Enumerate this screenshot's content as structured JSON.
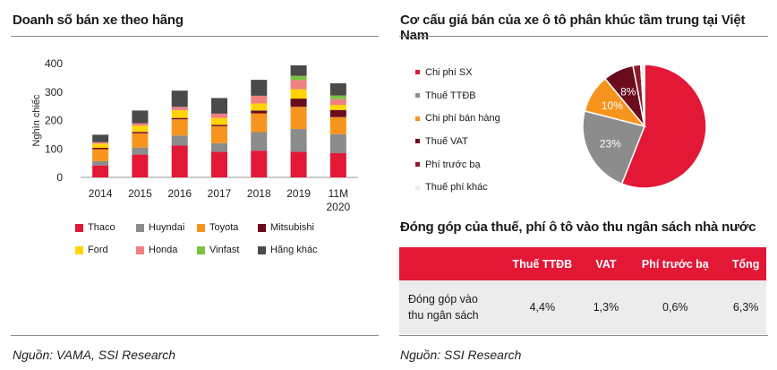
{
  "left": {
    "title": "Doanh số bán xe theo hãng",
    "source": "Nguồn: VAMA, SSI Research"
  },
  "right": {
    "pie_title": "Cơ cấu giá bán của xe ô tô phân khúc tầm trung tại Việt Nam",
    "table_title": "Đóng góp của thuế, phí ô tô vào thu ngân sách nhà nước",
    "source": "Nguồn: SSI Research"
  },
  "table": {
    "headers": [
      "",
      "Thuế TTĐB",
      "VAT",
      "Phí trước bạ",
      "Tổng"
    ],
    "row_label_line1": "Đóng góp vào",
    "row_label_line2": "thu ngân sách",
    "values": [
      "4,4%",
      "1,3%",
      "0,6%",
      "6,3%"
    ]
  },
  "colors": {
    "red": "#e31837",
    "grey": "#8c8c8c",
    "orange": "#f7941d",
    "maroon": "#6b0c1d",
    "yellow": "#ffd500",
    "pink": "#f08080",
    "green": "#7dc242",
    "darkgrey": "#4a4a4a",
    "light": "#efefef",
    "header": "#e31837"
  },
  "chart_data": [
    {
      "type": "bar",
      "stacked": true,
      "title": "Doanh số bán xe theo hãng",
      "ylabel": "Nghìn chiếc",
      "xlabel": "",
      "ylim": [
        0,
        400
      ],
      "yticks": [
        0,
        100,
        200,
        300,
        400
      ],
      "categories": [
        "2014",
        "2015",
        "2016",
        "2017",
        "2018",
        "2019",
        "11M 2020"
      ],
      "category_lines": [
        [
          "2014"
        ],
        [
          "2015"
        ],
        [
          "2016"
        ],
        [
          "2017"
        ],
        [
          "2018"
        ],
        [
          "2019"
        ],
        [
          "11M",
          "2020"
        ]
      ],
      "series": [
        {
          "name": "Thaco",
          "color": "#e31837",
          "values": [
            42,
            80,
            112,
            90,
            94,
            90,
            85
          ]
        },
        {
          "name": "Huyndai",
          "color": "#8c8c8c",
          "values": [
            15,
            25,
            35,
            30,
            65,
            80,
            67
          ]
        },
        {
          "name": "Toyota",
          "color": "#f7941d",
          "values": [
            42,
            50,
            57,
            60,
            66,
            78,
            60
          ]
        },
        {
          "name": "Mitsubishi",
          "color": "#6b0c1d",
          "values": [
            5,
            5,
            5,
            5,
            10,
            29,
            25
          ]
        },
        {
          "name": "Ford",
          "color": "#ffd500",
          "values": [
            15,
            22,
            27,
            24,
            25,
            33,
            18
          ]
        },
        {
          "name": "Honda",
          "color": "#f08080",
          "values": [
            5,
            8,
            12,
            15,
            27,
            32,
            20
          ]
        },
        {
          "name": "Vinfast",
          "color": "#7dc242",
          "values": [
            0,
            0,
            0,
            0,
            0,
            15,
            13
          ]
        },
        {
          "name": "Hãng khác",
          "color": "#4a4a4a",
          "values": [
            26,
            45,
            57,
            55,
            56,
            37,
            43
          ]
        }
      ],
      "legend_position": "bottom",
      "grid": false
    },
    {
      "type": "pie",
      "title": "Cơ cấu giá bán của xe ô tô phân khúc tầm trung tại Việt Nam",
      "slices": [
        {
          "label": "Chi phí SX",
          "value": 56,
          "color": "#e31837",
          "data_label": ""
        },
        {
          "label": "Thuế TTĐB",
          "value": 23,
          "color": "#8c8c8c",
          "data_label": "23%"
        },
        {
          "label": "Chi phí bán hàng",
          "value": 10,
          "color": "#f7941d",
          "data_label": "10%"
        },
        {
          "label": "Thuế VAT",
          "value": 8,
          "color": "#6b0c1d",
          "data_label": "8%"
        },
        {
          "label": "Phí trước bạ",
          "value": 2,
          "color": "#8b1a2b",
          "data_label": ""
        },
        {
          "label": "Thuế phí khác",
          "value": 1,
          "color": "#efefef",
          "data_label": ""
        }
      ],
      "legend_position": "left"
    }
  ]
}
